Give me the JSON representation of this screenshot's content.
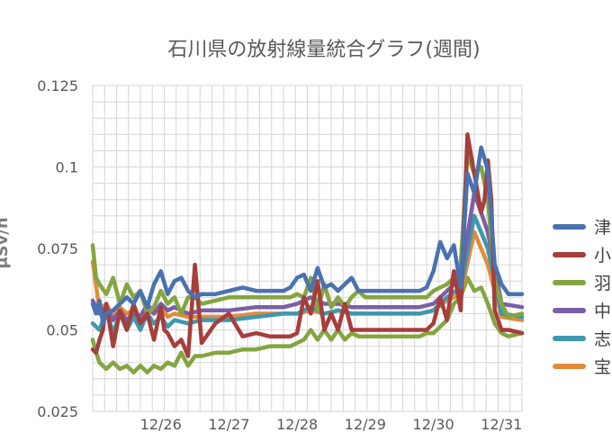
{
  "chart_data": {
    "type": "line",
    "title": "石川県の放射線量統合グラフ(週間)",
    "ylabel": "μSv/h",
    "ylim": [
      0.025,
      0.125
    ],
    "yticks": [
      "0.125",
      "0.1",
      "0.075",
      "0.05",
      "0.025"
    ],
    "ytick_values": [
      0.125,
      0.1,
      0.075,
      0.05,
      0.025
    ],
    "xlim": [
      0,
      6.3
    ],
    "x_categories": [
      "12/26",
      "12/27",
      "12/28",
      "12/29",
      "12/30",
      "12/31"
    ],
    "x_category_positions": [
      1,
      2,
      3,
      4,
      5,
      6
    ],
    "grid": true,
    "legend_position": "right",
    "series": [
      {
        "name": "津",
        "color": "#4a72b0",
        "x": [
          0,
          0.05,
          0.1,
          0.15,
          0.2,
          0.3,
          0.4,
          0.5,
          0.6,
          0.7,
          0.8,
          0.9,
          1.0,
          1.1,
          1.2,
          1.3,
          1.4,
          1.5,
          1.6,
          1.8,
          2.0,
          2.2,
          2.4,
          2.6,
          2.8,
          2.9,
          3.0,
          3.1,
          3.2,
          3.3,
          3.4,
          3.5,
          3.6,
          3.7,
          3.8,
          3.9,
          4.0,
          4.2,
          4.4,
          4.6,
          4.8,
          4.9,
          5.0,
          5.1,
          5.2,
          5.3,
          5.4,
          5.5,
          5.6,
          5.7,
          5.8,
          5.9,
          6.0,
          6.1,
          6.3
        ],
        "y": [
          0.058,
          0.055,
          0.059,
          0.052,
          0.055,
          0.056,
          0.058,
          0.06,
          0.058,
          0.062,
          0.057,
          0.064,
          0.068,
          0.061,
          0.065,
          0.066,
          0.062,
          0.06,
          0.061,
          0.061,
          0.062,
          0.063,
          0.062,
          0.062,
          0.062,
          0.063,
          0.066,
          0.067,
          0.062,
          0.069,
          0.063,
          0.064,
          0.062,
          0.064,
          0.066,
          0.062,
          0.062,
          0.062,
          0.062,
          0.062,
          0.062,
          0.063,
          0.068,
          0.077,
          0.072,
          0.076,
          0.063,
          0.098,
          0.092,
          0.106,
          0.099,
          0.07,
          0.064,
          0.061,
          0.061
        ]
      },
      {
        "name": "小",
        "color": "#a63e3b",
        "x": [
          0,
          0.05,
          0.1,
          0.15,
          0.2,
          0.3,
          0.4,
          0.5,
          0.6,
          0.7,
          0.8,
          0.9,
          1.0,
          1.05,
          1.1,
          1.2,
          1.3,
          1.4,
          1.5,
          1.6,
          1.8,
          2.0,
          2.2,
          2.4,
          2.6,
          2.8,
          2.9,
          3.0,
          3.1,
          3.2,
          3.3,
          3.4,
          3.5,
          3.6,
          3.7,
          3.8,
          3.9,
          4.0,
          4.2,
          4.4,
          4.6,
          4.8,
          4.9,
          5.0,
          5.1,
          5.2,
          5.3,
          5.4,
          5.5,
          5.6,
          5.7,
          5.75,
          5.8,
          5.85,
          5.9,
          6.0,
          6.1,
          6.3
        ],
        "y": [
          0.044,
          0.043,
          0.047,
          0.05,
          0.058,
          0.045,
          0.056,
          0.05,
          0.058,
          0.052,
          0.055,
          0.047,
          0.057,
          0.05,
          0.049,
          0.045,
          0.047,
          0.042,
          0.07,
          0.046,
          0.052,
          0.055,
          0.048,
          0.049,
          0.048,
          0.048,
          0.048,
          0.049,
          0.06,
          0.055,
          0.065,
          0.05,
          0.055,
          0.05,
          0.058,
          0.05,
          0.05,
          0.05,
          0.05,
          0.05,
          0.05,
          0.05,
          0.05,
          0.052,
          0.06,
          0.053,
          0.068,
          0.056,
          0.11,
          0.098,
          0.086,
          0.09,
          0.102,
          0.09,
          0.056,
          0.05,
          0.05,
          0.049
        ]
      },
      {
        "name": "羽",
        "color": "#84a540",
        "x": [
          0,
          0.05,
          0.1,
          0.2,
          0.3,
          0.4,
          0.5,
          0.6,
          0.7,
          0.8,
          0.9,
          1.0,
          1.1,
          1.2,
          1.3,
          1.4,
          1.5,
          1.6,
          1.8,
          2.0,
          2.2,
          2.4,
          2.6,
          2.8,
          2.9,
          3.0,
          3.1,
          3.2,
          3.3,
          3.4,
          3.5,
          3.6,
          3.7,
          3.8,
          3.9,
          4.0,
          4.2,
          4.4,
          4.6,
          4.8,
          4.9,
          5.0,
          5.1,
          5.2,
          5.3,
          5.4,
          5.5,
          5.6,
          5.7,
          5.8,
          5.9,
          6.0,
          6.1,
          6.3
        ],
        "y": [
          0.076,
          0.066,
          0.064,
          0.061,
          0.066,
          0.058,
          0.064,
          0.06,
          0.062,
          0.055,
          0.057,
          0.062,
          0.058,
          0.06,
          0.055,
          0.06,
          0.06,
          0.058,
          0.059,
          0.06,
          0.06,
          0.06,
          0.06,
          0.06,
          0.06,
          0.061,
          0.06,
          0.066,
          0.056,
          0.064,
          0.057,
          0.06,
          0.057,
          0.06,
          0.062,
          0.06,
          0.06,
          0.06,
          0.06,
          0.06,
          0.06,
          0.062,
          0.063,
          0.064,
          0.066,
          0.07,
          0.104,
          0.098,
          0.1,
          0.09,
          0.065,
          0.058,
          0.054,
          0.055
        ]
      },
      {
        "name": "中",
        "color": "#7b5fa6",
        "x": [
          0,
          0.1,
          0.2,
          0.3,
          0.4,
          0.5,
          0.6,
          0.7,
          0.8,
          0.9,
          1.0,
          1.1,
          1.2,
          1.4,
          1.6,
          1.8,
          2.0,
          2.4,
          2.8,
          3.0,
          3.2,
          3.4,
          3.6,
          3.8,
          4.0,
          4.4,
          4.8,
          5.0,
          5.2,
          5.4,
          5.6,
          5.8,
          6.0,
          6.3
        ],
        "y": [
          0.059,
          0.055,
          0.057,
          0.053,
          0.056,
          0.053,
          0.055,
          0.054,
          0.058,
          0.055,
          0.058,
          0.056,
          0.057,
          0.055,
          0.056,
          0.056,
          0.056,
          0.057,
          0.057,
          0.058,
          0.06,
          0.058,
          0.058,
          0.057,
          0.057,
          0.057,
          0.057,
          0.058,
          0.062,
          0.066,
          0.092,
          0.08,
          0.058,
          0.057
        ]
      },
      {
        "name": "志",
        "color": "#3d98b0",
        "x": [
          0,
          0.1,
          0.2,
          0.3,
          0.4,
          0.5,
          0.6,
          0.7,
          0.8,
          0.9,
          1.0,
          1.1,
          1.2,
          1.4,
          1.6,
          1.8,
          2.0,
          2.4,
          2.8,
          3.0,
          3.2,
          3.4,
          3.6,
          3.8,
          4.0,
          4.4,
          4.8,
          5.0,
          5.2,
          5.4,
          5.6,
          5.8,
          6.0,
          6.3
        ],
        "y": [
          0.052,
          0.05,
          0.056,
          0.049,
          0.055,
          0.05,
          0.054,
          0.05,
          0.055,
          0.052,
          0.054,
          0.051,
          0.053,
          0.052,
          0.053,
          0.053,
          0.053,
          0.054,
          0.055,
          0.055,
          0.057,
          0.055,
          0.056,
          0.055,
          0.055,
          0.055,
          0.055,
          0.056,
          0.06,
          0.063,
          0.085,
          0.075,
          0.055,
          0.054
        ]
      },
      {
        "name": "宝",
        "color": "#e38b3c",
        "x": [
          0,
          0.1,
          0.2,
          0.3,
          0.4,
          0.5,
          0.6,
          0.7,
          0.8,
          0.9,
          1.0,
          1.1,
          1.2,
          1.4,
          1.6,
          1.8,
          2.0,
          2.4,
          2.8,
          3.0,
          3.2,
          3.4,
          3.6,
          3.8,
          4.0,
          4.4,
          4.8,
          5.0,
          5.2,
          5.4,
          5.6,
          5.8,
          6.0,
          6.3
        ],
        "y": [
          0.071,
          0.056,
          0.058,
          0.054,
          0.057,
          0.055,
          0.056,
          0.054,
          0.056,
          0.055,
          0.057,
          0.054,
          0.055,
          0.054,
          0.054,
          0.054,
          0.054,
          0.055,
          0.055,
          0.055,
          0.056,
          0.055,
          0.056,
          0.055,
          0.055,
          0.055,
          0.055,
          0.056,
          0.059,
          0.061,
          0.08,
          0.07,
          0.054,
          0.053
        ]
      },
      {
        "name": "",
        "color": "#84a540",
        "x": [
          0,
          0.05,
          0.1,
          0.2,
          0.3,
          0.4,
          0.5,
          0.6,
          0.7,
          0.8,
          0.9,
          1.0,
          1.1,
          1.2,
          1.3,
          1.4,
          1.5,
          1.6,
          1.8,
          2.0,
          2.2,
          2.4,
          2.6,
          2.8,
          2.9,
          3.0,
          3.1,
          3.2,
          3.3,
          3.4,
          3.5,
          3.6,
          3.7,
          3.8,
          3.9,
          4.0,
          4.2,
          4.4,
          4.6,
          4.8,
          4.9,
          5.0,
          5.1,
          5.2,
          5.3,
          5.4,
          5.5,
          5.6,
          5.7,
          5.8,
          5.9,
          6.0,
          6.1,
          6.3
        ],
        "y": [
          0.047,
          0.043,
          0.04,
          0.038,
          0.04,
          0.038,
          0.039,
          0.037,
          0.039,
          0.037,
          0.039,
          0.038,
          0.04,
          0.039,
          0.043,
          0.039,
          0.042,
          0.042,
          0.043,
          0.043,
          0.044,
          0.044,
          0.045,
          0.045,
          0.045,
          0.046,
          0.047,
          0.05,
          0.047,
          0.05,
          0.047,
          0.05,
          0.047,
          0.049,
          0.048,
          0.048,
          0.048,
          0.048,
          0.048,
          0.048,
          0.049,
          0.049,
          0.051,
          0.053,
          0.058,
          0.06,
          0.066,
          0.062,
          0.063,
          0.058,
          0.052,
          0.049,
          0.048,
          0.049
        ]
      }
    ]
  }
}
